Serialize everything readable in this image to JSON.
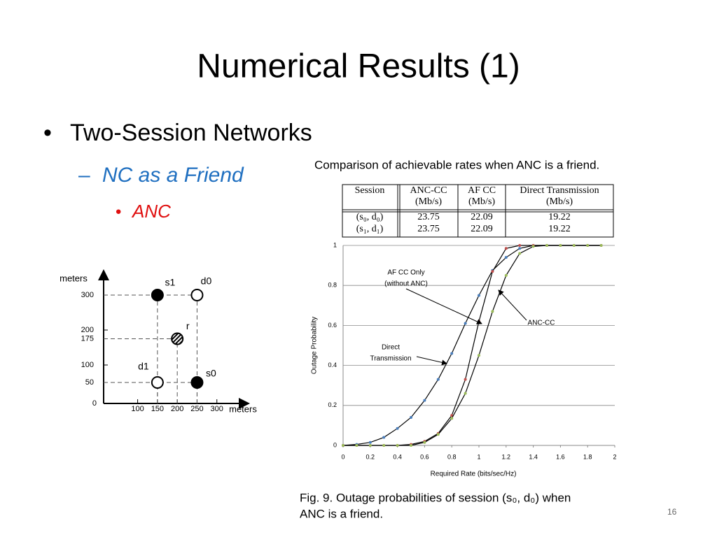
{
  "slide": {
    "title": "Numerical Results (1)",
    "bullet": "Two-Session Networks",
    "sub_bullet": "NC as a Friend",
    "sub_sub_bullet": "ANC",
    "page_number": "16"
  },
  "table": {
    "title": "Comparison of achievable rates when ANC is a friend.",
    "header": [
      [
        "Session"
      ],
      [
        "ANC-CC",
        "(Mb/s)"
      ],
      [
        "AF CC",
        "(Mb/s)"
      ],
      [
        "Direct Transmission",
        "(Mb/s)"
      ]
    ],
    "rows": [
      [
        "(s₀, d₀)",
        "23.75",
        "22.09",
        "19.22"
      ],
      [
        "(s₁, d₁)",
        "23.75",
        "22.09",
        "19.22"
      ]
    ]
  },
  "caption": [
    "Fig. 9.  Outage probabilities of session (s₀, d₀) when",
    "ANC is a friend."
  ],
  "chart_data": [
    {
      "type": "scatter",
      "xlabel": "meters",
      "ylabel": "meters",
      "x": [
        150,
        250,
        200,
        150,
        250
      ],
      "values": [
        300,
        300,
        175,
        50,
        50
      ],
      "point_labels": [
        "s1",
        "d0",
        "r",
        "d1",
        "s0"
      ],
      "markers": [
        "filled",
        "open",
        "hatched",
        "open",
        "filled"
      ],
      "xlim": [
        0,
        380
      ],
      "ylim": [
        0,
        370
      ],
      "xticks": [
        100,
        150,
        200,
        250,
        300
      ],
      "yticks": [
        0,
        50,
        100,
        175,
        200,
        300
      ]
    },
    {
      "type": "line",
      "xlabel": "Required Rate (bits/sec/Hz)",
      "ylabel": "Outage Probability",
      "x": [
        0,
        0.1,
        0.2,
        0.3,
        0.4,
        0.5,
        0.6,
        0.7,
        0.8,
        0.9,
        1.0,
        1.1,
        1.2,
        1.3,
        1.4,
        1.5,
        1.6,
        1.7,
        1.8,
        1.9
      ],
      "series": [
        {
          "name": "Direct Transmission",
          "color": "#4a7ebb",
          "values": [
            0,
            0.005,
            0.015,
            0.04,
            0.085,
            0.14,
            0.225,
            0.33,
            0.46,
            0.61,
            0.75,
            0.875,
            0.94,
            0.985,
            1,
            1,
            1,
            1,
            1,
            1
          ]
        },
        {
          "name": "AF CC Only",
          "color": "#c0504d",
          "values": [
            0,
            0,
            0,
            0,
            0,
            0.005,
            0.02,
            0.06,
            0.15,
            0.33,
            0.62,
            0.87,
            0.985,
            1,
            1,
            1,
            1,
            1,
            1,
            1
          ]
        },
        {
          "name": "ANC-CC",
          "color": "#9bbb59",
          "values": [
            0,
            0,
            0,
            0,
            0,
            0,
            0.015,
            0.055,
            0.135,
            0.26,
            0.45,
            0.67,
            0.85,
            0.96,
            0.995,
            1,
            1,
            1,
            1,
            1
          ]
        }
      ],
      "annotations": [
        [
          "AF CC Only",
          "(without ANC)"
        ],
        [
          "Direct",
          "Transmission"
        ],
        [
          "ANC-CC"
        ]
      ],
      "xlim": [
        0,
        2
      ],
      "ylim": [
        0,
        1
      ],
      "xticks": [
        0,
        0.2,
        0.4,
        0.6,
        0.8,
        1,
        1.2,
        1.4,
        1.6,
        1.8,
        2
      ],
      "yticks": [
        0,
        0.2,
        0.4,
        0.6,
        0.8,
        1
      ],
      "grid": true
    }
  ]
}
